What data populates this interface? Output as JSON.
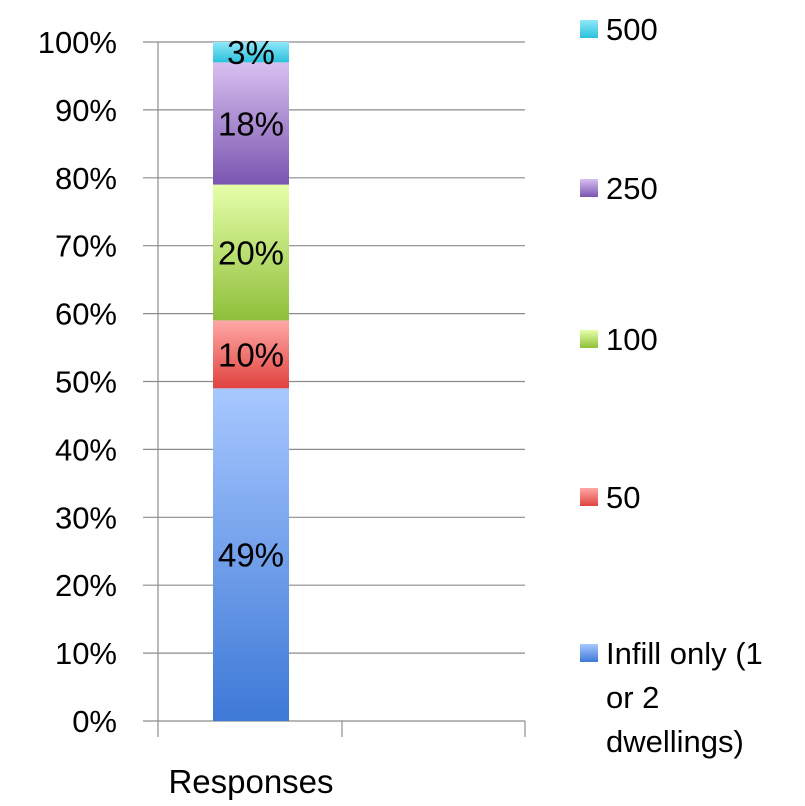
{
  "chart_data": {
    "type": "bar",
    "stacked": true,
    "percent": true,
    "categories": [
      "Responses"
    ],
    "ylim": [
      0,
      100
    ],
    "yticks": [
      "0%",
      "10%",
      "20%",
      "30%",
      "40%",
      "50%",
      "60%",
      "70%",
      "80%",
      "90%",
      "100%"
    ],
    "grid": true,
    "legend_position": "right",
    "series": [
      {
        "name": "Infill only (1 or 2 dwellings)",
        "legend_lines": [
          "Infill only (1",
          "or 2",
          "dwellings)"
        ],
        "values": [
          49
        ],
        "label": "49%",
        "color": "#4f81bd",
        "color_light": "#a8c8ff",
        "color_dark": "#3d79d6"
      },
      {
        "name": "50",
        "legend_lines": [
          "50"
        ],
        "values": [
          10
        ],
        "label": "10%",
        "color": "#c0504d",
        "color_light": "#ffa8a6",
        "color_dark": "#e0433f"
      },
      {
        "name": "100",
        "legend_lines": [
          "100"
        ],
        "values": [
          20
        ],
        "label": "20%",
        "color": "#9bbb59",
        "color_light": "#e6ffaa",
        "color_dark": "#8fbf3a"
      },
      {
        "name": "250",
        "legend_lines": [
          "250"
        ],
        "values": [
          18
        ],
        "label": "18%",
        "color": "#8064a2",
        "color_light": "#d8c0f0",
        "color_dark": "#7a55b0"
      },
      {
        "name": "500",
        "legend_lines": [
          "500"
        ],
        "values": [
          3
        ],
        "label": "3%",
        "color": "#4bacc6",
        "color_light": "#8ee8f8",
        "color_dark": "#2cc0dc"
      }
    ]
  }
}
